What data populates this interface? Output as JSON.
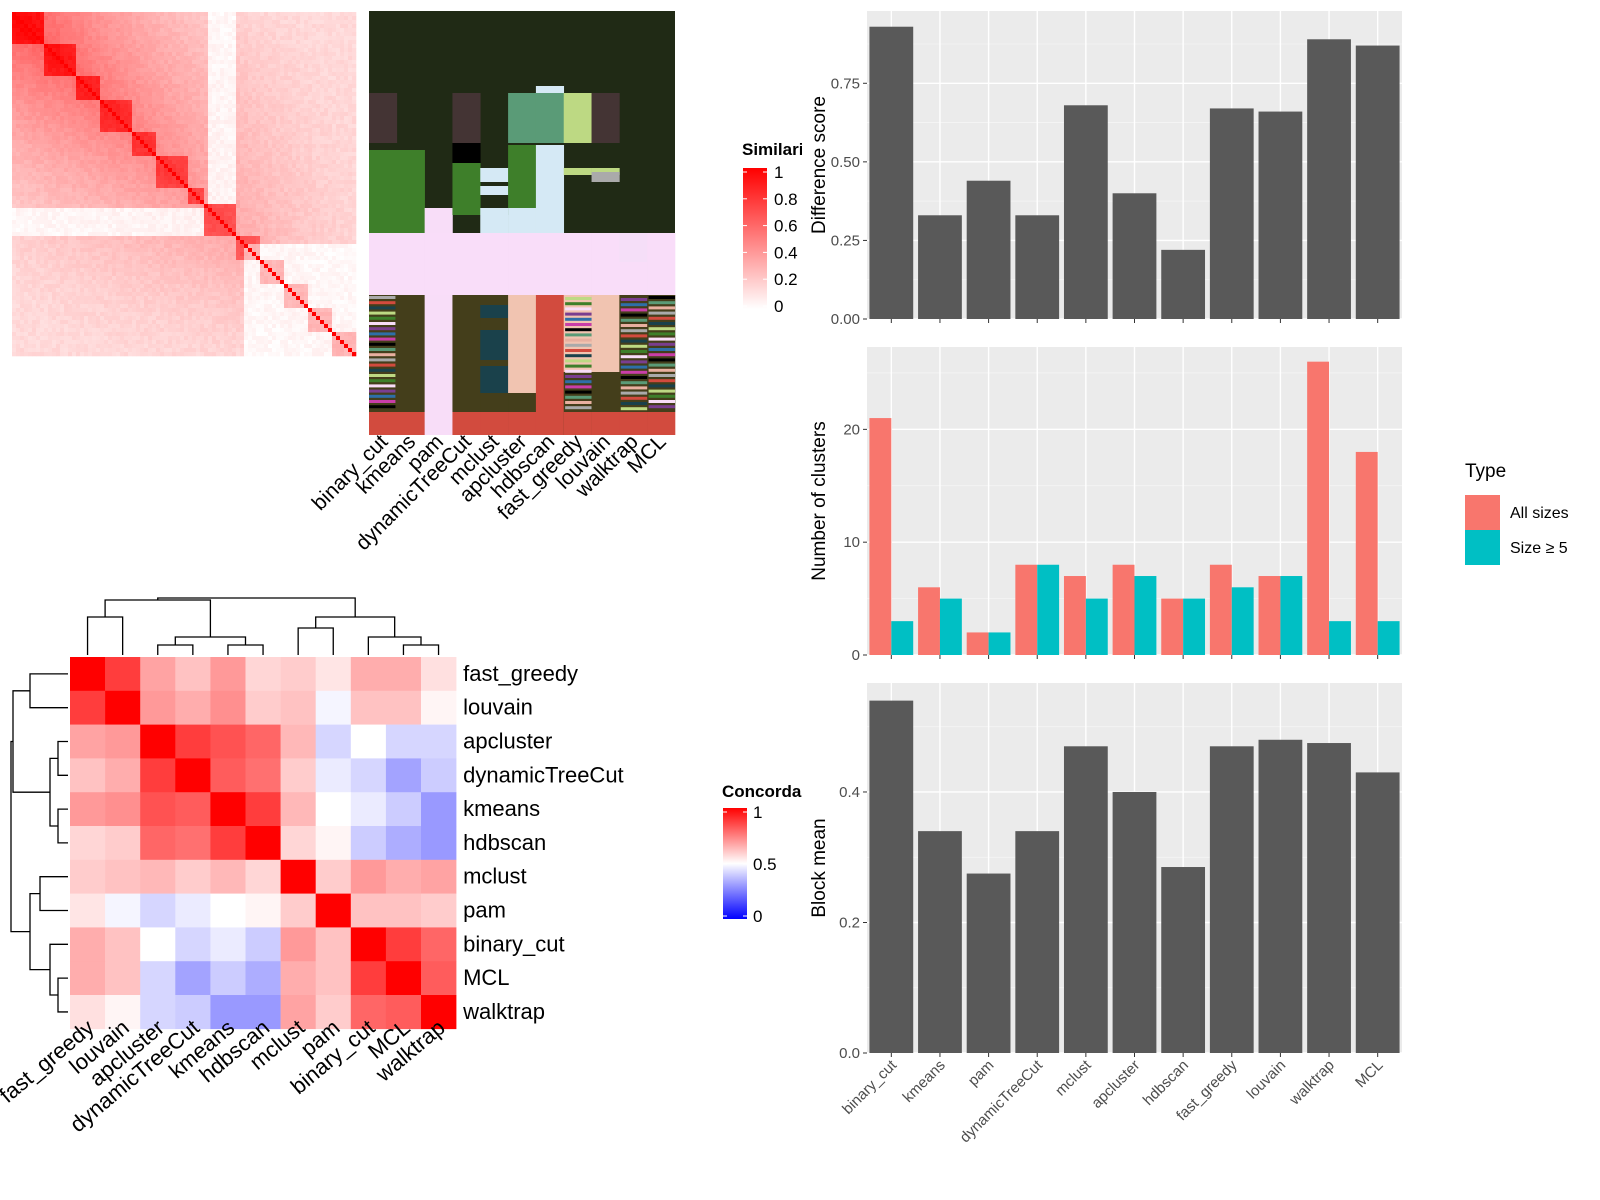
{
  "methods": [
    "binary_cut",
    "kmeans",
    "pam",
    "dynamicTreeCut",
    "mclust",
    "apcluster",
    "hdbscan",
    "fast_greedy",
    "louvain",
    "walktrap",
    "MCL"
  ],
  "colors": {
    "bar_dark": "#595959",
    "panel_bg": "#EBEBEB",
    "grid_major": "#FFFFFF",
    "all_sizes": "#F8766D",
    "size_ge5": "#00BFC4",
    "heat_high": "#FF0000",
    "heat_mid": "#FFFFFF",
    "heat_low": "#0000FF",
    "membership_bg": "#202A15"
  },
  "similarity_legend": {
    "title": "Similarity",
    "ticks": [
      "1",
      "0.8",
      "0.6",
      "0.4",
      "0.2",
      "0"
    ]
  },
  "concordance_legend": {
    "title": "Concordance",
    "ticks": [
      "1",
      "0.5",
      "0"
    ]
  },
  "concordance": {
    "order": [
      "fast_greedy",
      "louvain",
      "apcluster",
      "dynamicTreeCut",
      "kmeans",
      "hdbscan",
      "mclust",
      "pam",
      "binary_cut",
      "MCL",
      "walktrap"
    ],
    "matrix": [
      [
        1.0,
        0.88,
        0.68,
        0.62,
        0.7,
        0.58,
        0.6,
        0.55,
        0.66,
        0.66,
        0.56
      ],
      [
        0.88,
        1.0,
        0.7,
        0.66,
        0.72,
        0.6,
        0.62,
        0.48,
        0.62,
        0.62,
        0.52
      ],
      [
        0.68,
        0.7,
        1.0,
        0.88,
        0.84,
        0.8,
        0.64,
        0.42,
        0.5,
        0.42,
        0.42
      ],
      [
        0.62,
        0.66,
        0.88,
        1.0,
        0.82,
        0.78,
        0.6,
        0.46,
        0.42,
        0.32,
        0.4
      ],
      [
        0.7,
        0.72,
        0.84,
        0.82,
        1.0,
        0.88,
        0.64,
        0.5,
        0.46,
        0.4,
        0.3
      ],
      [
        0.58,
        0.6,
        0.8,
        0.78,
        0.88,
        1.0,
        0.58,
        0.52,
        0.4,
        0.34,
        0.3
      ],
      [
        0.6,
        0.62,
        0.64,
        0.6,
        0.64,
        0.58,
        1.0,
        0.6,
        0.7,
        0.66,
        0.68
      ],
      [
        0.55,
        0.48,
        0.42,
        0.46,
        0.5,
        0.52,
        0.6,
        1.0,
        0.62,
        0.62,
        0.6
      ],
      [
        0.66,
        0.62,
        0.5,
        0.42,
        0.46,
        0.4,
        0.7,
        0.62,
        1.0,
        0.88,
        0.8
      ],
      [
        0.66,
        0.62,
        0.42,
        0.32,
        0.4,
        0.34,
        0.66,
        0.62,
        0.88,
        1.0,
        0.82
      ],
      [
        0.56,
        0.52,
        0.42,
        0.4,
        0.3,
        0.3,
        0.68,
        0.6,
        0.8,
        0.82,
        1.0
      ]
    ]
  },
  "chart_data": [
    {
      "type": "bar",
      "categories": [
        "binary_cut",
        "kmeans",
        "pam",
        "dynamicTreeCut",
        "mclust",
        "apcluster",
        "hdbscan",
        "fast_greedy",
        "louvain",
        "walktrap",
        "MCL"
      ],
      "values": [
        0.93,
        0.33,
        0.44,
        0.33,
        0.68,
        0.4,
        0.22,
        0.67,
        0.66,
        0.89,
        0.87
      ],
      "xlabel": "",
      "ylabel": "Difference score",
      "ylim": [
        0,
        0.98
      ],
      "yticks": [
        "0.00",
        "0.25",
        "0.50",
        "0.75"
      ],
      "grid": true
    },
    {
      "type": "bar",
      "categories": [
        "binary_cut",
        "kmeans",
        "pam",
        "dynamicTreeCut",
        "mclust",
        "apcluster",
        "hdbscan",
        "fast_greedy",
        "louvain",
        "walktrap",
        "MCL"
      ],
      "series": [
        {
          "name": "All sizes",
          "values": [
            21,
            6,
            2,
            8,
            7,
            8,
            5,
            8,
            7,
            26,
            18
          ]
        },
        {
          "name": "Size ≥ 5",
          "values": [
            3,
            5,
            2,
            8,
            5,
            7,
            5,
            6,
            7,
            3,
            3
          ]
        }
      ],
      "xlabel": "",
      "ylabel": "Number of clusters",
      "ylim": [
        0,
        27.3
      ],
      "yticks": [
        "0",
        "10",
        "20"
      ],
      "legend": {
        "title": "Type",
        "position": "right"
      },
      "grid": true
    },
    {
      "type": "bar",
      "categories": [
        "binary_cut",
        "kmeans",
        "pam",
        "dynamicTreeCut",
        "mclust",
        "apcluster",
        "hdbscan",
        "fast_greedy",
        "louvain",
        "walktrap",
        "MCL"
      ],
      "values": [
        0.54,
        0.34,
        0.275,
        0.34,
        0.47,
        0.4,
        0.285,
        0.47,
        0.48,
        0.475,
        0.43
      ],
      "xlabel": "",
      "ylabel": "Block mean",
      "ylim": [
        0,
        0.567
      ],
      "yticks": [
        "0.0",
        "0.2",
        "0.4"
      ],
      "grid": true
    }
  ]
}
